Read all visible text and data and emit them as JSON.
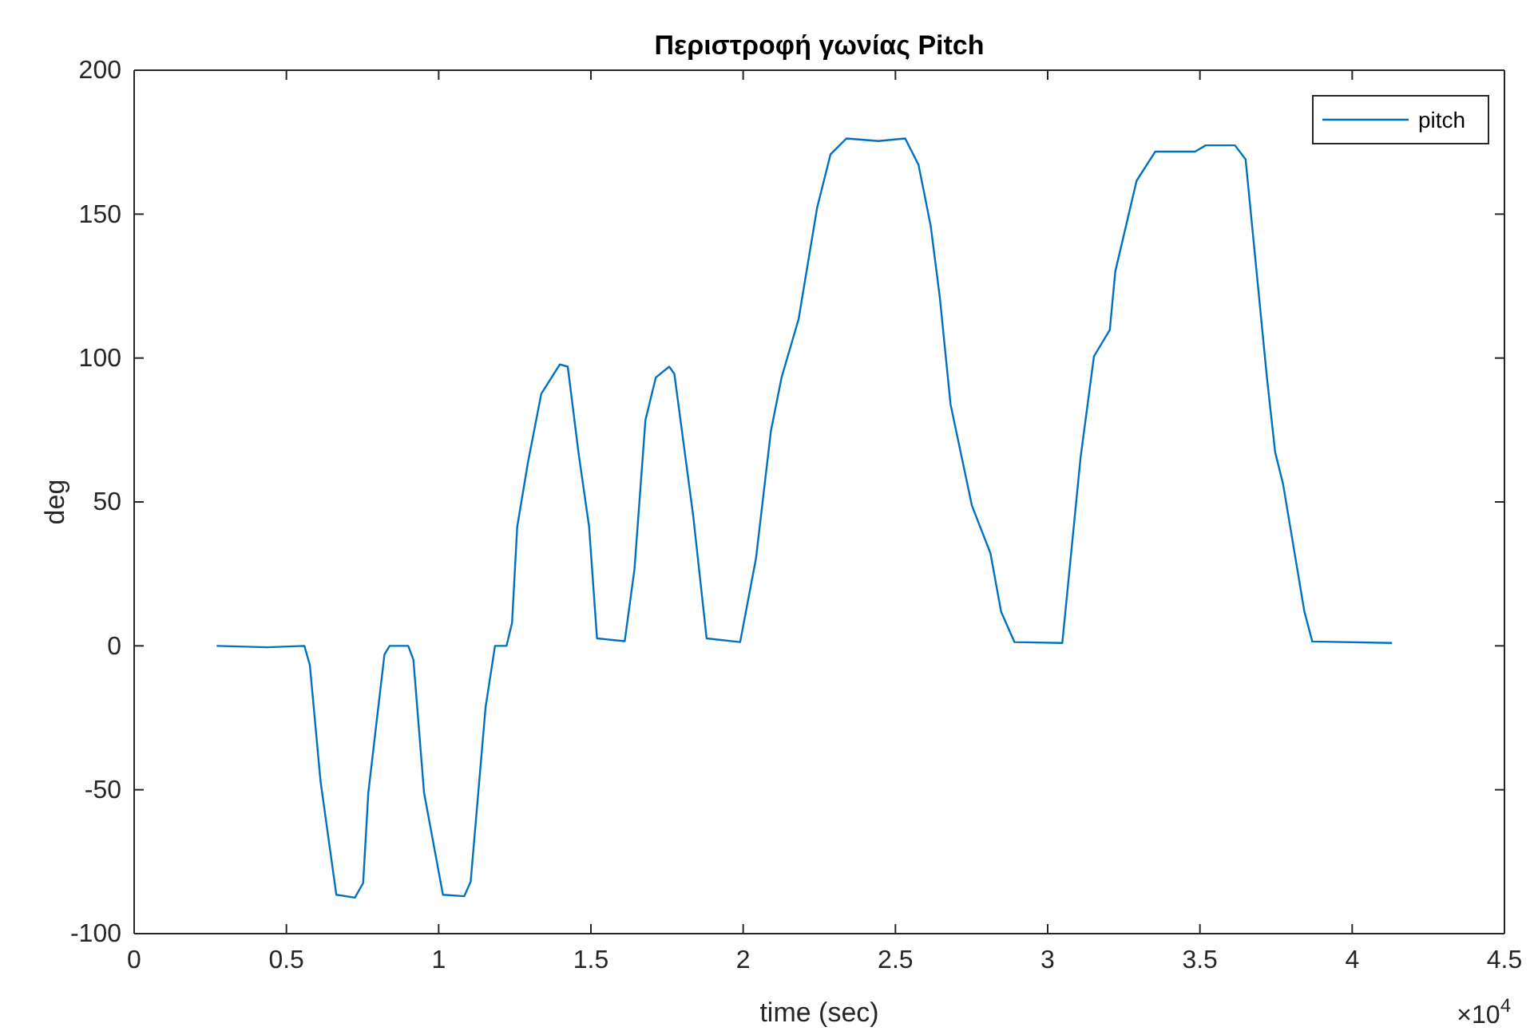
{
  "chart_data": {
    "type": "line",
    "title": "Περιστροφή γωνίας Pitch",
    "xlabel": "time (sec)",
    "ylabel": "deg",
    "annotations": [
      "×10$^{4}$"
    ],
    "xlim": [
      0,
      4.5
    ],
    "xticks": [
      0,
      0.5,
      1,
      1.5,
      2,
      2.5,
      3,
      3.5,
      4,
      4.5
    ],
    "ylim": [
      -100,
      200
    ],
    "yticks": [
      -100,
      -50,
      0,
      50,
      100,
      150,
      200
    ],
    "grid": false,
    "legend": "top right",
    "marker": "none",
    "line_style": "solid",
    "series": [
      {
        "name": "pitch",
        "color": "#0072bd",
        "x": [
          0.271,
          0.437,
          0.559,
          0.577,
          0.612,
          0.664,
          0.725,
          0.752,
          0.769,
          0.822,
          0.839,
          0.9,
          0.917,
          0.952,
          1.014,
          1.084,
          1.105,
          1.154,
          1.185,
          1.223,
          1.241,
          1.258,
          1.293,
          1.337,
          1.398,
          1.424,
          1.459,
          1.494,
          1.52,
          1.611,
          1.643,
          1.679,
          1.713,
          1.757,
          1.774,
          1.836,
          1.88,
          1.99,
          2.042,
          2.091,
          2.126,
          2.182,
          2.243,
          2.287,
          2.339,
          2.444,
          2.532,
          2.576,
          2.616,
          2.646,
          2.681,
          2.751,
          2.812,
          2.847,
          2.891,
          3.048,
          3.108,
          3.152,
          3.204,
          3.222,
          3.292,
          3.353,
          3.484,
          3.519,
          3.615,
          3.65,
          3.72,
          3.747,
          3.773,
          3.843,
          3.869,
          4.131
        ],
        "values": [
          0,
          -0.5,
          0,
          -6.7,
          -47,
          -86.5,
          -87.5,
          -82.4,
          -51,
          -3,
          0,
          0,
          -4.8,
          -51,
          -86.5,
          -87,
          -82,
          -21.4,
          0,
          0,
          8,
          41.4,
          63.6,
          87.6,
          97.8,
          97,
          67.3,
          41.4,
          2.6,
          1.6,
          26.6,
          78.4,
          93.2,
          97,
          94.5,
          45.1,
          2.6,
          1.3,
          30.3,
          74.6,
          93.2,
          113.5,
          152.3,
          170.8,
          176.3,
          175.4,
          176.3,
          167.1,
          145.8,
          120.9,
          83.9,
          48.8,
          32.2,
          11.9,
          1.3,
          1,
          65.4,
          100.6,
          109.8,
          130.1,
          161.6,
          171.7,
          171.7,
          173.9,
          173.9,
          169,
          93.2,
          67.3,
          56.2,
          11.9,
          1.5,
          1
        ]
      }
    ]
  }
}
